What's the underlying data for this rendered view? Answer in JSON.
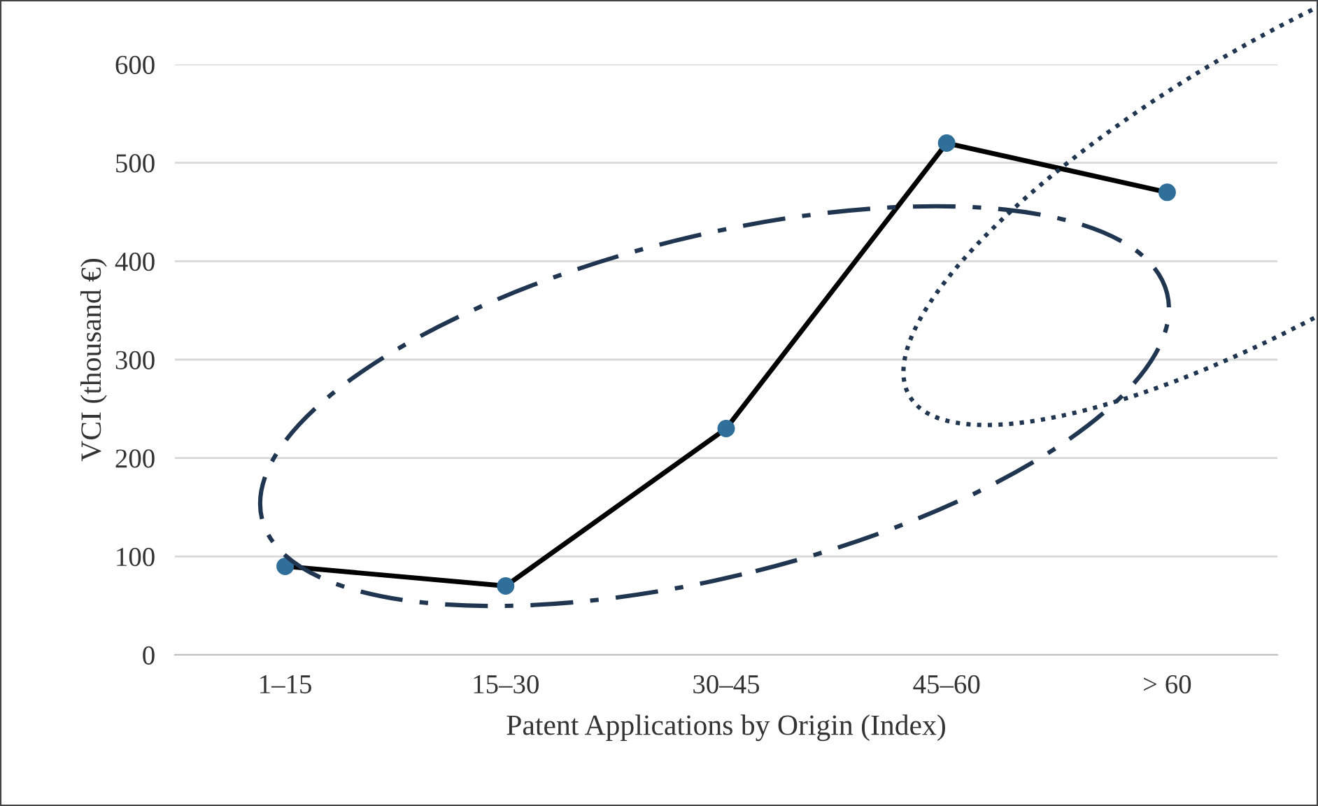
{
  "chart_data": {
    "type": "line",
    "xlabel": "Patent Applications by Origin (Index)",
    "ylabel": "VCI (thousand €)",
    "categories": [
      "1–15",
      "15–30",
      "30–45",
      "45–60",
      "> 60"
    ],
    "series": [
      {
        "color": "#000000",
        "values": [
          90,
          70,
          230,
          520,
          470
        ]
      }
    ],
    "marker": "circle",
    "line_style": "solid",
    "ylim": [
      0,
      600
    ],
    "yticks": [
      0,
      100,
      200,
      300,
      400,
      500,
      600
    ],
    "grid": "y",
    "legend": false
  }
}
